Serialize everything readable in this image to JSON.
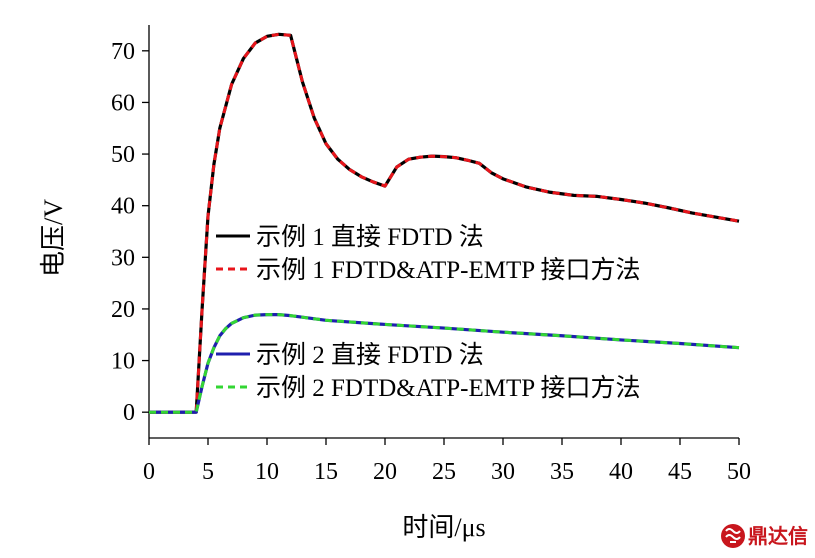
{
  "chart_data": {
    "type": "line",
    "title": "",
    "xlabel": "时间/μs",
    "ylabel": "电压/V",
    "xlim": [
      0,
      50
    ],
    "ylim": [
      -5,
      75
    ],
    "xticks": [
      "0",
      "5",
      "10",
      "15",
      "20",
      "25",
      "30",
      "35",
      "40",
      "45",
      "50"
    ],
    "yticks": [
      "0",
      "10",
      "20",
      "30",
      "40",
      "50",
      "60",
      "70"
    ],
    "grid": false,
    "legend_position": "center-left",
    "series": [
      {
        "name": "示例 1 直接 FDTD 法",
        "color": "#000000",
        "dash": "solid",
        "x": [
          0,
          4,
          4.5,
          5,
          5.5,
          6,
          7,
          8,
          9,
          10,
          11,
          12,
          13,
          14,
          15,
          16,
          17,
          18,
          19,
          20,
          21,
          22,
          23,
          24,
          25,
          26,
          27,
          28,
          29,
          30,
          32,
          34,
          36,
          38,
          40,
          42,
          44,
          46,
          48,
          50
        ],
        "y": [
          0,
          0,
          20,
          38,
          48,
          55,
          63.5,
          68.5,
          71.5,
          72.8,
          73.2,
          73,
          64,
          57,
          52,
          49,
          47,
          45.6,
          44.6,
          43.8,
          47.5,
          49,
          49.4,
          49.6,
          49.5,
          49.3,
          48.8,
          48.2,
          46.4,
          45.2,
          43.6,
          42.6,
          42,
          41.8,
          41.2,
          40.5,
          39.6,
          38.6,
          37.8,
          37
        ]
      },
      {
        "name": "示例 1 FDTD&ATP-EMTP 接口方法",
        "color": "#e8151b",
        "dash": "dashed",
        "x": [
          0,
          4,
          4.5,
          5,
          5.5,
          6,
          7,
          8,
          9,
          10,
          11,
          12,
          13,
          14,
          15,
          16,
          17,
          18,
          19,
          20,
          21,
          22,
          23,
          24,
          25,
          26,
          27,
          28,
          29,
          30,
          32,
          34,
          36,
          38,
          40,
          42,
          44,
          46,
          48,
          50
        ],
        "y": [
          0,
          0,
          20,
          38,
          48,
          55,
          63.5,
          68.5,
          71.5,
          72.8,
          73.2,
          73,
          64,
          57,
          52,
          49,
          47,
          45.6,
          44.6,
          43.8,
          47.5,
          49,
          49.4,
          49.6,
          49.5,
          49.3,
          48.8,
          48.2,
          46.4,
          45.2,
          43.6,
          42.6,
          42,
          41.8,
          41.2,
          40.5,
          39.6,
          38.6,
          37.8,
          37
        ]
      },
      {
        "name": "示例 2 直接 FDTD 法",
        "color": "#1f1fae",
        "dash": "solid",
        "x": [
          0,
          4,
          4.5,
          5,
          5.5,
          6,
          6.5,
          7,
          8,
          9,
          10,
          11,
          12,
          13,
          15,
          20,
          25,
          30,
          35,
          40,
          45,
          50
        ],
        "y": [
          0,
          0,
          5,
          9.5,
          12.5,
          14.8,
          16.2,
          17.2,
          18.3,
          18.8,
          18.9,
          18.9,
          18.7,
          18.4,
          17.8,
          17,
          16.3,
          15.5,
          14.8,
          14,
          13.3,
          12.5
        ]
      },
      {
        "name": "示例 2 FDTD&ATP-EMTP 接口方法",
        "color": "#33d633",
        "dash": "dashed",
        "x": [
          0,
          4,
          4.5,
          5,
          5.5,
          6,
          6.5,
          7,
          8,
          9,
          10,
          11,
          12,
          13,
          15,
          20,
          25,
          30,
          35,
          40,
          45,
          50
        ],
        "y": [
          0,
          0,
          5,
          9.5,
          12.5,
          14.8,
          16.2,
          17.2,
          18.3,
          18.8,
          18.9,
          18.9,
          18.7,
          18.4,
          17.8,
          17,
          16.3,
          15.5,
          14.8,
          14,
          13.3,
          12.5
        ]
      }
    ]
  },
  "watermark": {
    "text": "鼎达信",
    "icon": "chinese-seal-logo-icon"
  }
}
